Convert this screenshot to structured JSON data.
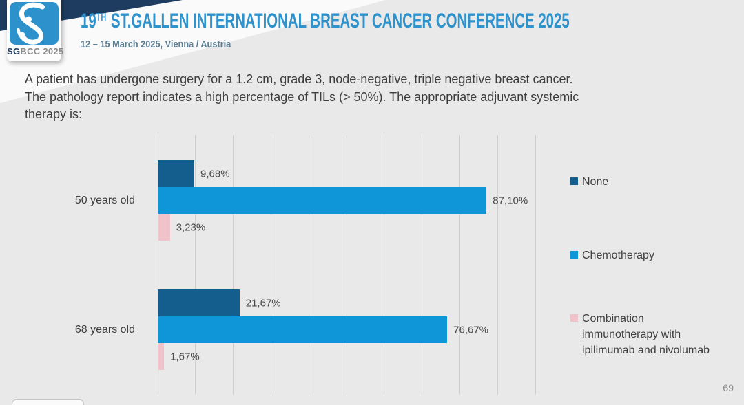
{
  "header": {
    "logo_sg": "SG",
    "logo_rest": "BCC 2025",
    "title_num": "19",
    "title_sup": "TH",
    "title_rest": "ST.GALLEN INTERNATIONAL BREAST CANCER CONFERENCE 2025",
    "subtitle": "12 – 15 March 2025, Vienna / Austria"
  },
  "question": {
    "lines": [
      "A patient has undergone surgery for a 1.2 cm, grade 3, node-negative, triple negative breast cancer.",
      "The pathology report indicates a high percentage of TILs (> 50%). The appropriate adjuvant systemic",
      "therapy is:"
    ]
  },
  "page_number": "69",
  "colors": {
    "background": "#e9e9e9",
    "navy_corner": "#1e3c60",
    "logo_blue": "#2d91cb",
    "title_blue": "#2e92cc",
    "gridline": "#cfcfcf"
  },
  "chart_data": {
    "type": "bar",
    "orientation": "horizontal",
    "title": "",
    "xlabel": "",
    "ylabel": "",
    "xlim": [
      0,
      100
    ],
    "gridline_step": 10,
    "grid": true,
    "legend_position": "right",
    "categories": [
      "50 years old",
      "68 years old"
    ],
    "series": [
      {
        "name": "None",
        "color": "#135e8d",
        "values": [
          9.68,
          21.67
        ],
        "labels": [
          "9,68%",
          "21,67%"
        ]
      },
      {
        "name": "Chemotherapy",
        "color": "#0f96d9",
        "values": [
          87.1,
          76.67
        ],
        "labels": [
          "87,10%",
          "76,67%"
        ]
      },
      {
        "name": "Combination immunotherapy with ipilimumab and nivolumab",
        "color": "#efc3c9",
        "values": [
          3.23,
          1.67
        ],
        "labels": [
          "3,23%",
          "1,67%"
        ]
      }
    ]
  }
}
